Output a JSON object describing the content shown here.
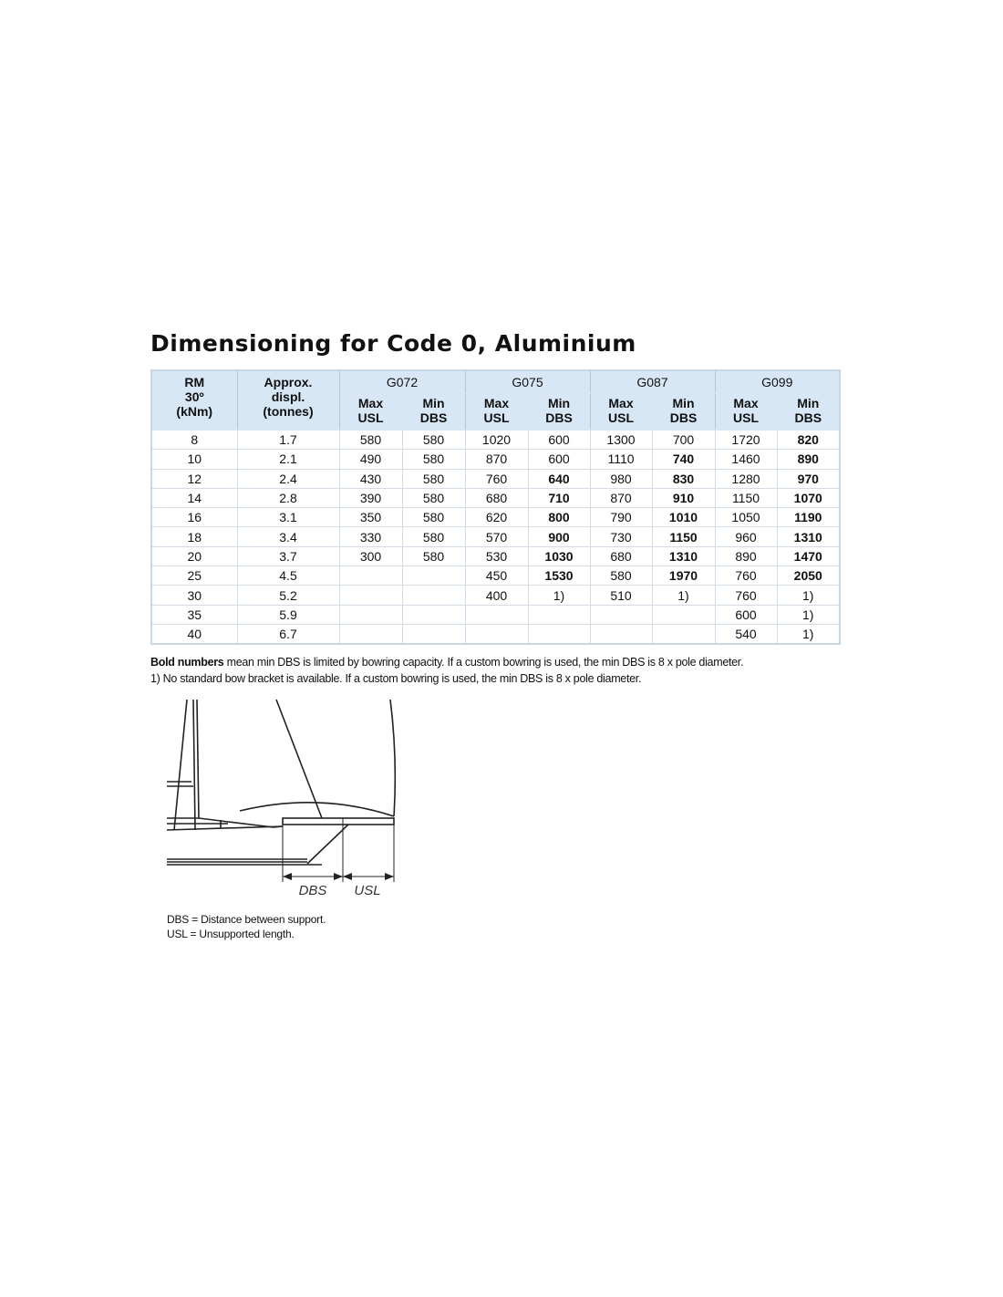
{
  "title": "Dimensioning for Code 0, Aluminium",
  "table": {
    "col_rm": "RM 30º (kNm)",
    "col_rm_lines": [
      "RM",
      "30º",
      "(kNm)"
    ],
    "col_displ_lines": [
      "Approx.",
      "displ.",
      "(tonnes)"
    ],
    "groups": [
      "G072",
      "G075",
      "G087",
      "G099"
    ],
    "sub_max": [
      "Max",
      "USL"
    ],
    "sub_min": [
      "Min",
      "DBS"
    ],
    "rows": [
      {
        "cells": [
          "8",
          "1.7",
          "580",
          "580",
          "1020",
          "600",
          "1300",
          "700",
          "1720",
          "820"
        ],
        "bold": [
          9
        ]
      },
      {
        "cells": [
          "10",
          "2.1",
          "490",
          "580",
          "870",
          "600",
          "1110",
          "740",
          "1460",
          "890"
        ],
        "bold": [
          7,
          9
        ]
      },
      {
        "cells": [
          "12",
          "2.4",
          "430",
          "580",
          "760",
          "640",
          "980",
          "830",
          "1280",
          "970"
        ],
        "bold": [
          5,
          7,
          9
        ]
      },
      {
        "cells": [
          "14",
          "2.8",
          "390",
          "580",
          "680",
          "710",
          "870",
          "910",
          "1150",
          "1070"
        ],
        "bold": [
          5,
          7,
          9
        ]
      },
      {
        "cells": [
          "16",
          "3.1",
          "350",
          "580",
          "620",
          "800",
          "790",
          "1010",
          "1050",
          "1190"
        ],
        "bold": [
          5,
          7,
          9
        ]
      },
      {
        "cells": [
          "18",
          "3.4",
          "330",
          "580",
          "570",
          "900",
          "730",
          "1150",
          "960",
          "1310"
        ],
        "bold": [
          5,
          7,
          9
        ]
      },
      {
        "cells": [
          "20",
          "3.7",
          "300",
          "580",
          "530",
          "1030",
          "680",
          "1310",
          "890",
          "1470"
        ],
        "bold": [
          5,
          7,
          9
        ]
      },
      {
        "cells": [
          "25",
          "4.5",
          "",
          "",
          "450",
          "1530",
          "580",
          "1970",
          "760",
          "2050"
        ],
        "bold": [
          5,
          7,
          9
        ]
      },
      {
        "cells": [
          "30",
          "5.2",
          "",
          "",
          "400",
          "1)",
          "510",
          "1)",
          "760",
          "1)"
        ],
        "bold": []
      },
      {
        "cells": [
          "35",
          "5.9",
          "",
          "",
          "",
          "",
          "",
          "",
          "600",
          "1)"
        ],
        "bold": []
      },
      {
        "cells": [
          "40",
          "6.7",
          "",
          "",
          "",
          "",
          "",
          "",
          "540",
          "1)"
        ],
        "bold": []
      }
    ]
  },
  "notes": {
    "line1_bold": "Bold numbers",
    "line1_rest": " mean min DBS is limited by bowring capacity. If a custom bowring is used, the min DBS is 8 x pole diameter.",
    "line2": "1) No standard bow bracket is available. If a custom bowring is used, the min DBS is 8 x pole diameter."
  },
  "diagram": {
    "label_dbs": "DBS",
    "label_usl": "USL",
    "legend_dbs": "DBS = Distance between support.",
    "legend_usl": "USL = Unsupported length."
  }
}
